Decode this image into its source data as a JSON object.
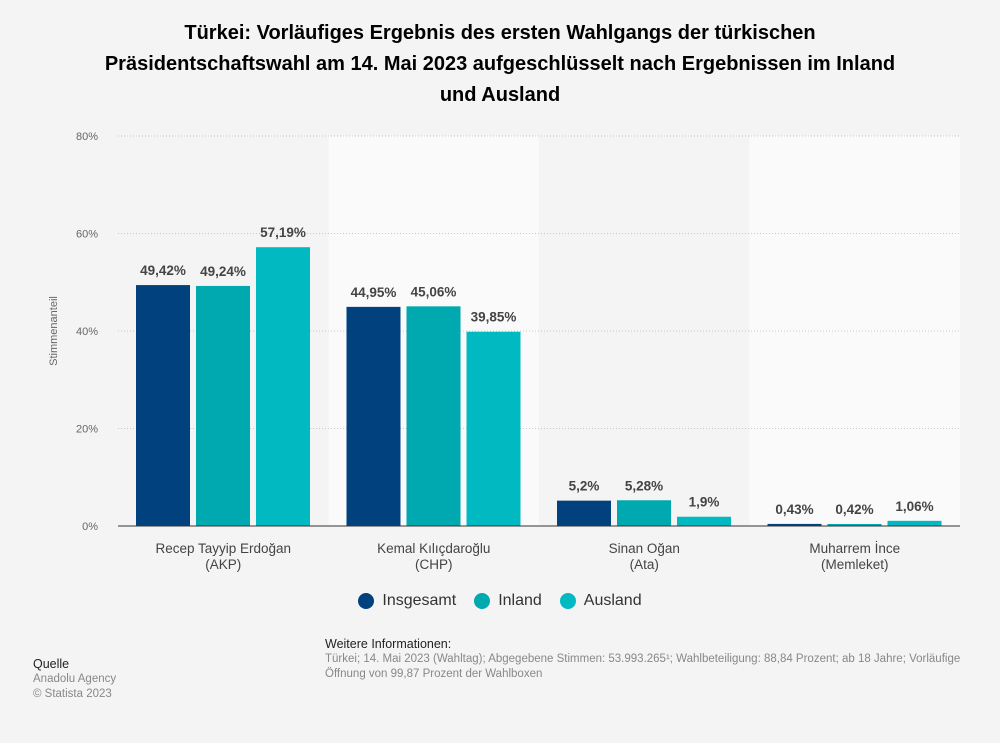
{
  "chart_data": {
    "type": "bar",
    "title": "Türkei: Vorläufiges Ergebnis des ersten Wahlgangs der türkischen Präsidentschaftswahl am 14. Mai 2023 aufgeschlüsselt nach Ergebnissen im Inland und Ausland",
    "ylabel": "Stimmenanteil",
    "xlabel": "",
    "ylim": [
      0,
      80
    ],
    "yticks": [
      "0%",
      "20%",
      "40%",
      "60%",
      "80%"
    ],
    "grid": true,
    "legend_position": "bottom",
    "categories": [
      [
        "Recep Tayyip Erdoğan",
        "(AKP)"
      ],
      [
        "Kemal Kılıçdaroğlu",
        "(CHP)"
      ],
      [
        "Sinan Oğan",
        "(Ata)"
      ],
      [
        "Muharrem İnce",
        "(Memleket)"
      ]
    ],
    "series": [
      {
        "name": "Insgesamt",
        "color": "#00417e",
        "values": [
          49.42,
          44.95,
          5.2,
          0.43
        ],
        "labels": [
          "49,42%",
          "44,95%",
          "5,2%",
          "0,43%"
        ]
      },
      {
        "name": "Inland",
        "color": "#00a8b0",
        "values": [
          49.24,
          45.06,
          5.28,
          0.42
        ],
        "labels": [
          "49,24%",
          "45,06%",
          "5,28%",
          "0,42%"
        ]
      },
      {
        "name": "Ausland",
        "color": "#00b9c1",
        "values": [
          57.19,
          39.85,
          1.9,
          1.06
        ],
        "labels": [
          "57,19%",
          "39,85%",
          "1,9%",
          "1,06%"
        ]
      }
    ]
  },
  "footer": {
    "source_heading": "Quelle",
    "source": "Anadolu Agency",
    "copyright": "© Statista 2023",
    "info_heading": "Weitere Informationen:",
    "info_line1": "Türkei; 14. Mai 2023 (Wahltag); Abgegebene Stimmen: 53.993.265¹; Wahlbeteiligung: 88,84 Prozent; ab 18 Jahre; Vorläufige",
    "info_line2": "Öffnung von 99,87 Prozent der Wahlboxen"
  }
}
